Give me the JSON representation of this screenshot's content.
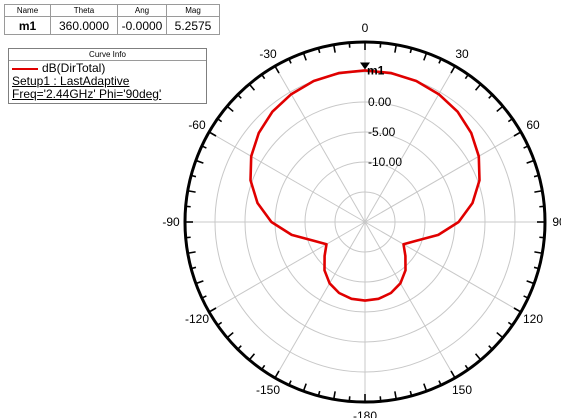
{
  "marker_table": {
    "headers": {
      "name": "Name",
      "theta": "Theta",
      "ang": "Ang",
      "mag": "Mag"
    },
    "row": {
      "name": "m1",
      "theta": "360.0000",
      "ang": "-0.0000",
      "mag": "5.2575"
    }
  },
  "legend": {
    "title": "Curve Info",
    "trace": "dB(DirTotal)",
    "setup": "Setup1 : LastAdaptive",
    "freq": "Freq='2.44GHz' Phi='90deg'"
  },
  "colors": {
    "trace": "#e00000",
    "grid": "#c8c8c8",
    "axis": "#000000"
  },
  "marker": {
    "label": "m1",
    "theta_deg": 360,
    "value_db": 5.2575
  },
  "chart_data": {
    "type": "polar-line",
    "angle_labels": [
      "0",
      "30",
      "60",
      "90",
      "120",
      "150",
      "-180",
      "-150",
      "-120",
      "-90",
      "-60",
      "-30"
    ],
    "angle_values_deg": [
      0,
      30,
      60,
      90,
      120,
      150,
      180,
      -150,
      -120,
      -90,
      -60,
      -30
    ],
    "radial_labels": [
      "0.00",
      "-5.00",
      "-10.00"
    ],
    "radial_values_db": [
      0,
      -5,
      -10
    ],
    "rlim": [
      -20,
      10
    ],
    "series": [
      {
        "name": "dB(DirTotal)",
        "theta_deg": [
          0,
          10,
          20,
          30,
          40,
          50,
          60,
          70,
          80,
          90,
          100,
          110,
          120,
          130,
          140,
          150,
          160,
          170,
          180,
          190,
          200,
          210,
          220,
          230,
          240,
          250,
          260,
          270,
          280,
          290,
          300,
          310,
          320,
          330,
          340,
          350,
          360
        ],
        "r_db": [
          5.26,
          5.2,
          5.0,
          4.6,
          4.0,
          3.1,
          1.9,
          0.3,
          -1.8,
          -4.4,
          -7.6,
          -10.9,
          -12.6,
          -11.2,
          -9.5,
          -8.2,
          -7.4,
          -7.0,
          -6.9,
          -7.0,
          -7.4,
          -8.2,
          -9.5,
          -11.2,
          -12.6,
          -10.9,
          -7.6,
          -4.4,
          -1.8,
          0.3,
          1.9,
          3.1,
          4.0,
          4.6,
          5.0,
          5.2,
          5.26
        ]
      }
    ]
  }
}
